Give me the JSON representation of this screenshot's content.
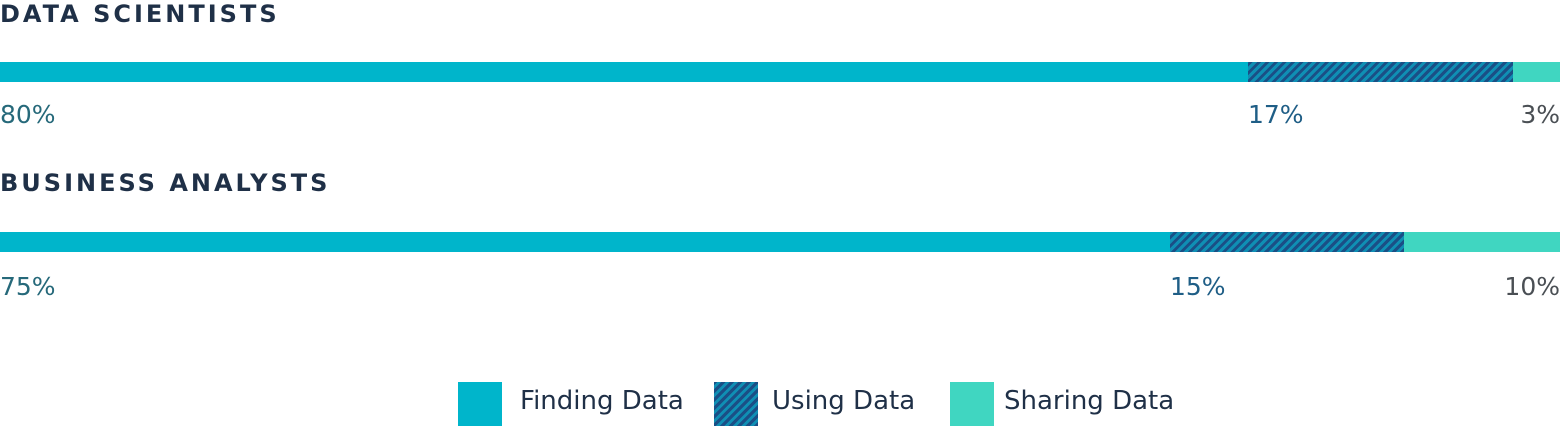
{
  "chart_data": {
    "type": "bar",
    "orientation": "horizontal-stacked",
    "categories": [
      "DATA SCIENTISTS",
      "BUSINESS ANALYSTS"
    ],
    "series": [
      {
        "name": "Finding Data",
        "values": [
          80,
          75
        ],
        "labels": [
          "80%",
          "75%"
        ],
        "color": "#00b5cb"
      },
      {
        "name": "Using Data",
        "values": [
          17,
          15
        ],
        "labels": [
          "17%",
          "15%"
        ],
        "color": "#1a4f86",
        "pattern": "diagonal-hatch",
        "pattern_alt_color": "#0f8fb4"
      },
      {
        "name": "Sharing Data",
        "values": [
          3,
          10
        ],
        "labels": [
          "3%",
          "10%"
        ],
        "color": "#40d6c1"
      }
    ],
    "value_axis_range": [
      0,
      100
    ],
    "legend": "bottom-center",
    "grid": false,
    "label_colors": {
      "Finding Data": "#26697a",
      "Using Data": "#1f5e86",
      "Sharing Data": "#4a4f54"
    }
  }
}
